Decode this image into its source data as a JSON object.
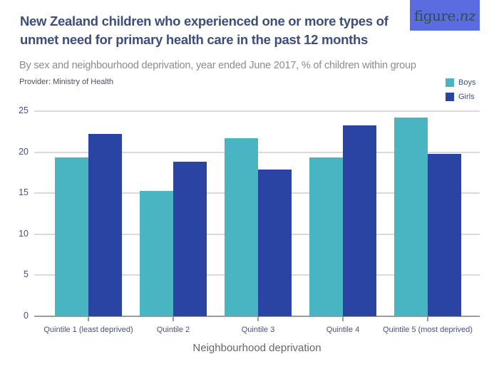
{
  "header": {
    "title_line1": "New Zealand children who experienced one or more types of",
    "title_line2": "unmet need for primary health care in the past 12 months",
    "subtitle": "By sex and neighbourhood deprivation, year ended June 2017, % of children within group",
    "provider": "Provider: Ministry of Health"
  },
  "logo": {
    "text_regular": "figure.",
    "text_italic": "nz",
    "badge_color": "#5B6BE0",
    "text_color": "#33503F"
  },
  "legend": {
    "items": [
      {
        "label": "Boys",
        "color": "#49B5C3"
      },
      {
        "label": "Girls",
        "color": "#2A44A4"
      }
    ]
  },
  "chart_data": {
    "type": "bar",
    "title": "New Zealand children who experienced one or more types of unmet need for primary health care in the past 12 months",
    "subtitle": "By sex and neighbourhood deprivation, year ended June 2017, % of children within group",
    "provider": "Provider: Ministry of Health",
    "categories": [
      "Quintile 1 (least deprived)",
      "Quintile 2",
      "Quintile 3",
      "Quintile 4",
      "Quintile 5 (most deprived)"
    ],
    "series": [
      {
        "name": "Boys",
        "color": "#49B5C3",
        "values": [
          19.4,
          15.3,
          21.7,
          19.4,
          24.2
        ]
      },
      {
        "name": "Girls",
        "color": "#2A44A4",
        "values": [
          22.2,
          18.8,
          17.9,
          23.3,
          19.8
        ]
      }
    ],
    "xlabel": "Neighbourhood deprivation",
    "ylabel": "",
    "ylim": [
      0,
      25
    ],
    "yticks": [
      0,
      5,
      10,
      15,
      20,
      25
    ],
    "grid": true,
    "legend_position": "top-right",
    "colors": {
      "gridline": "#D9D9D9",
      "axisline": "#9B9B9B",
      "tick_label": "#44527F",
      "category_label": "#46527E",
      "axis_title": "#65656D",
      "title": "#3E4E7B",
      "subtitle": "#8B8B94"
    }
  }
}
